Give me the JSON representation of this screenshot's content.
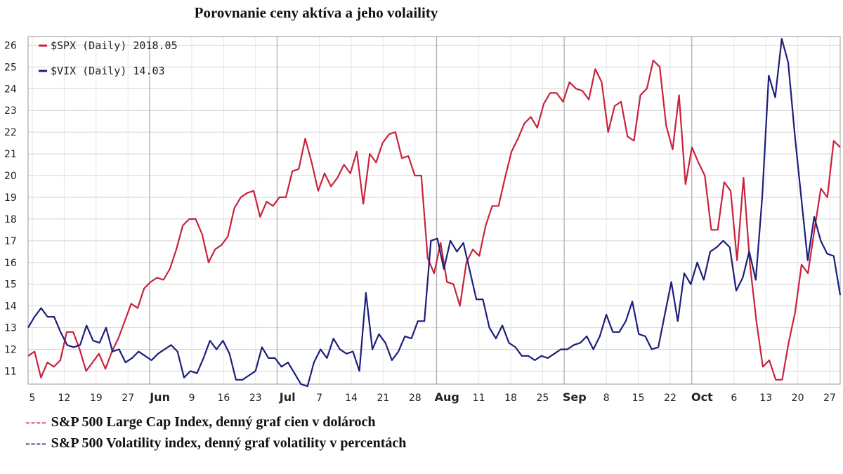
{
  "title": "Porovnanie ceny aktíva a jeho volaility",
  "colors": {
    "spx": "#c8233c",
    "vix": "#1b1f7a",
    "grid": "#d4d4d4",
    "frame": "#a9a9a9"
  },
  "legend": [
    {
      "key": "spx",
      "label": "$SPX (Daily) 2018.05"
    },
    {
      "key": "vix",
      "label": "$VIX (Daily) 14.03"
    }
  ],
  "captions": [
    {
      "key": "spx",
      "dash": "----",
      "text": "S&P 500 Large Cap Index, denný graf cien v dolároch"
    },
    {
      "key": "vix",
      "dash": "----",
      "text": "S&P 500 Volatility index, denný graf volatility v percentách"
    }
  ],
  "chart_data": {
    "type": "line",
    "y_ticks": [
      "11",
      "12",
      "13",
      "14",
      "15",
      "16",
      "17",
      "18",
      "19",
      "20",
      "21",
      "22",
      "23",
      "24",
      "25",
      "26"
    ],
    "x_ticks": [
      {
        "label": "5",
        "month": false
      },
      {
        "label": "12",
        "month": false
      },
      {
        "label": "19",
        "month": false
      },
      {
        "label": "27",
        "month": false
      },
      {
        "label": "Jun",
        "month": true
      },
      {
        "label": "9",
        "month": false
      },
      {
        "label": "16",
        "month": false
      },
      {
        "label": "23",
        "month": false
      },
      {
        "label": "Jul",
        "month": true
      },
      {
        "label": "7",
        "month": false
      },
      {
        "label": "14",
        "month": false
      },
      {
        "label": "21",
        "month": false
      },
      {
        "label": "28",
        "month": false
      },
      {
        "label": "Aug",
        "month": true
      },
      {
        "label": "11",
        "month": false
      },
      {
        "label": "18",
        "month": false
      },
      {
        "label": "25",
        "month": false
      },
      {
        "label": "Sep",
        "month": true
      },
      {
        "label": "8",
        "month": false
      },
      {
        "label": "15",
        "month": false
      },
      {
        "label": "22",
        "month": false
      },
      {
        "label": "Oct",
        "month": true
      },
      {
        "label": "6",
        "month": false
      },
      {
        "label": "13",
        "month": false
      },
      {
        "label": "20",
        "month": false
      },
      {
        "label": "27",
        "month": false
      }
    ],
    "month_lines_after_ticks": [
      "Jun",
      "Jul",
      "Aug",
      "Sep",
      "Oct"
    ],
    "grid": true,
    "legend_position": "top-left",
    "x_range": [
      0,
      125
    ],
    "y_range": [
      10.4,
      26.4
    ],
    "series": [
      {
        "name": "$SPX (Daily) 2018.05",
        "color": "spx",
        "values": [
          11.7,
          11.9,
          10.7,
          11.4,
          11.2,
          11.5,
          12.8,
          12.8,
          12.0,
          11.0,
          11.4,
          11.8,
          11.1,
          11.9,
          12.5,
          13.3,
          14.1,
          13.9,
          14.8,
          15.1,
          15.3,
          15.2,
          15.7,
          16.6,
          17.7,
          18.0,
          18.0,
          17.3,
          16.0,
          16.6,
          16.8,
          17.2,
          18.5,
          19.0,
          19.2,
          19.3,
          18.1,
          18.8,
          18.6,
          19.0,
          19.0,
          20.2,
          20.3,
          21.7,
          20.6,
          19.3,
          20.1,
          19.5,
          19.9,
          20.5,
          20.1,
          21.1,
          18.7,
          21.0,
          20.6,
          21.5,
          21.9,
          22.0,
          20.8,
          20.9,
          20.0,
          20.0,
          16.2,
          15.5,
          16.9,
          15.1,
          15.0,
          14.0,
          16.0,
          16.6,
          16.3,
          17.7,
          18.6,
          18.6,
          19.9,
          21.1,
          21.7,
          22.4,
          22.7,
          22.2,
          23.3,
          23.8,
          23.8,
          23.4,
          24.3,
          24.0,
          23.9,
          23.5,
          24.9,
          24.3,
          22.0,
          23.2,
          23.4,
          21.8,
          21.6,
          23.7,
          24.0,
          25.3,
          25.0,
          22.3,
          21.2,
          23.7,
          19.6,
          21.3,
          20.6,
          20.0,
          17.5,
          17.5,
          19.7,
          19.3,
          16.1,
          19.9,
          15.9,
          13.3,
          11.2,
          11.5,
          10.6,
          10.6,
          12.3,
          13.7,
          15.9,
          15.5,
          17.5,
          19.4,
          19.0,
          21.6,
          21.3
        ]
      },
      {
        "name": "$VIX (Daily) 14.03",
        "color": "vix",
        "values": [
          13.0,
          13.5,
          13.9,
          13.5,
          13.5,
          12.8,
          12.2,
          12.1,
          12.2,
          13.1,
          12.4,
          12.3,
          13.0,
          11.9,
          12.0,
          11.4,
          11.6,
          11.9,
          11.7,
          11.5,
          11.8,
          12.0,
          12.2,
          11.9,
          10.7,
          11.0,
          10.9,
          11.6,
          12.4,
          12.0,
          12.4,
          11.8,
          10.6,
          10.6,
          10.8,
          11.0,
          12.1,
          11.6,
          11.6,
          11.2,
          11.4,
          10.9,
          10.4,
          10.3,
          11.4,
          12.0,
          11.6,
          12.5,
          12.0,
          11.8,
          11.9,
          11.0,
          14.6,
          12.0,
          12.7,
          12.3,
          11.5,
          11.9,
          12.6,
          12.5,
          13.3,
          13.3,
          17.0,
          17.1,
          15.7,
          17.0,
          16.5,
          16.9,
          15.6,
          14.3,
          14.3,
          13.0,
          12.5,
          13.1,
          12.3,
          12.1,
          11.7,
          11.7,
          11.5,
          11.7,
          11.6,
          11.8,
          12.0,
          12.0,
          12.2,
          12.3,
          12.6,
          12.0,
          12.6,
          13.6,
          12.8,
          12.8,
          13.3,
          14.2,
          12.7,
          12.6,
          12.0,
          12.1,
          13.6,
          15.1,
          13.3,
          15.5,
          15.0,
          16.0,
          15.2,
          16.5,
          16.7,
          17.0,
          16.7,
          14.7,
          15.3,
          16.5,
          15.2,
          19.0,
          24.6,
          23.6,
          26.3,
          25.2,
          21.9,
          19.0,
          16.1,
          18.1,
          17.0,
          16.4,
          16.3,
          14.5
        ]
      }
    ]
  }
}
